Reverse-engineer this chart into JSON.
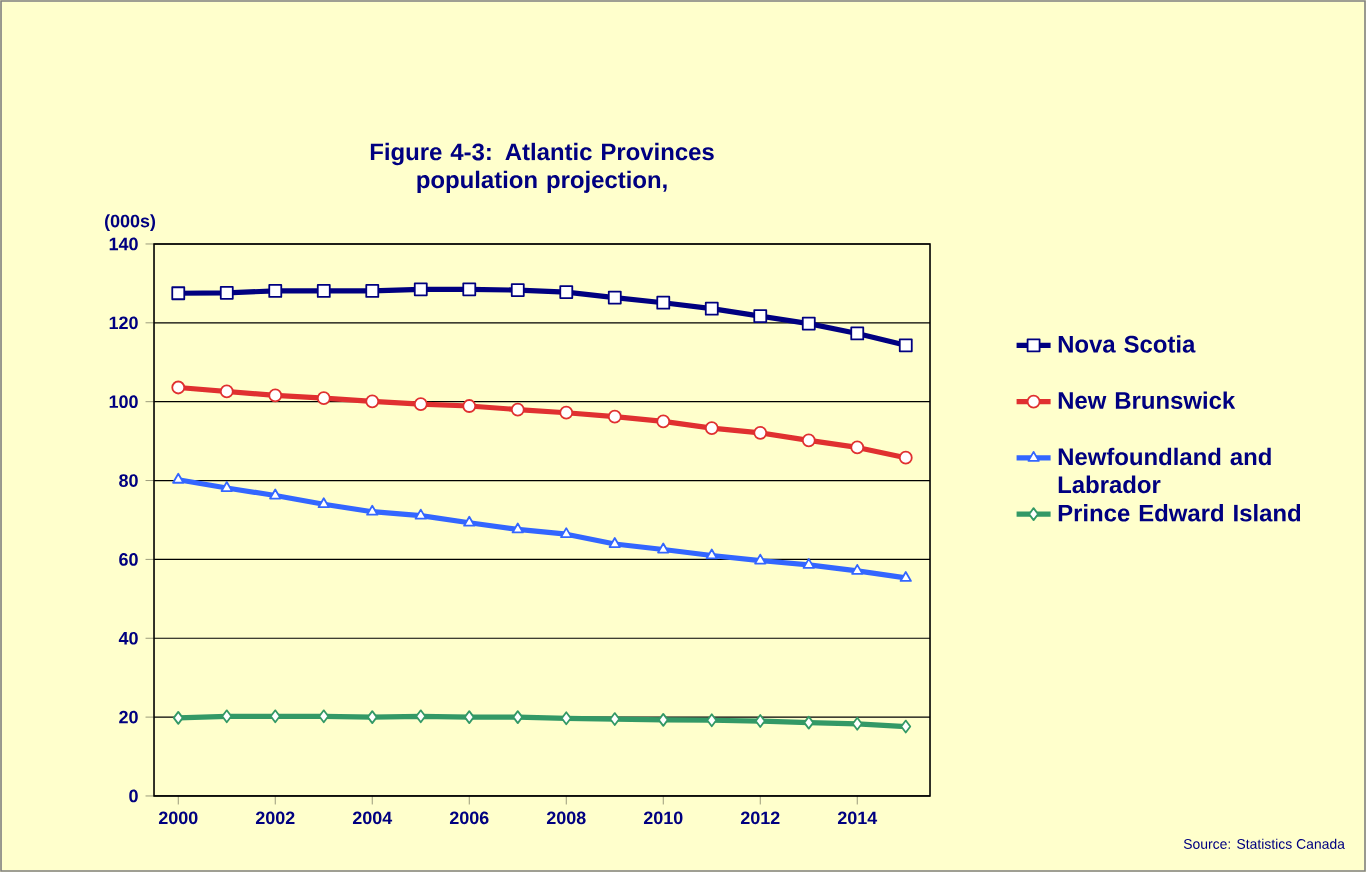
{
  "chart_data": {
    "type": "line",
    "title": "Figure 4-3: Atlantic Provinces population projection,",
    "ylabel": "(000s)",
    "x": [
      2000,
      2001,
      2002,
      2003,
      2004,
      2005,
      2006,
      2007,
      2008,
      2009,
      2010,
      2011,
      2012,
      2013,
      2014,
      2015
    ],
    "xlim": [
      1999.5,
      2015.5
    ],
    "xticks": [
      2000,
      2002,
      2004,
      2006,
      2008,
      2010,
      2012,
      2014
    ],
    "ylim": [
      0,
      140
    ],
    "yticks": [
      0,
      20,
      40,
      60,
      80,
      100,
      120,
      140
    ],
    "grid": "y",
    "legend": "right",
    "line_style": "solid",
    "annotations": [
      "Source: Statistics Canada"
    ],
    "series": [
      {
        "name": "Nova Scotia",
        "color": "#000080",
        "marker": "square",
        "values": [
          127.5,
          127.6,
          128.1,
          128.1,
          128.1,
          128.5,
          128.5,
          128.3,
          127.8,
          126.4,
          125.1,
          123.6,
          121.7,
          119.8,
          117.3,
          114.3
        ]
      },
      {
        "name": "New Brunswick",
        "color": "#e03030",
        "marker": "circle",
        "values": [
          103.6,
          102.6,
          101.6,
          100.9,
          100.1,
          99.4,
          98.9,
          98.0,
          97.2,
          96.2,
          95.0,
          93.3,
          92.1,
          90.2,
          88.4,
          85.8
        ]
      },
      {
        "name": "Newfoundland and Labrador",
        "color": "#3366ff",
        "marker": "triangle",
        "values": [
          80.2,
          78.1,
          76.2,
          74.0,
          72.1,
          71.1,
          69.3,
          67.6,
          66.4,
          63.9,
          62.5,
          61.0,
          59.7,
          58.6,
          57.1,
          55.3
        ]
      },
      {
        "name": "Prince Edward Island",
        "color": "#339966",
        "marker": "diamond",
        "values": [
          19.8,
          20.2,
          20.2,
          20.2,
          20.0,
          20.2,
          20.0,
          20.0,
          19.7,
          19.5,
          19.3,
          19.2,
          19.0,
          18.6,
          18.3,
          17.6
        ]
      }
    ]
  }
}
